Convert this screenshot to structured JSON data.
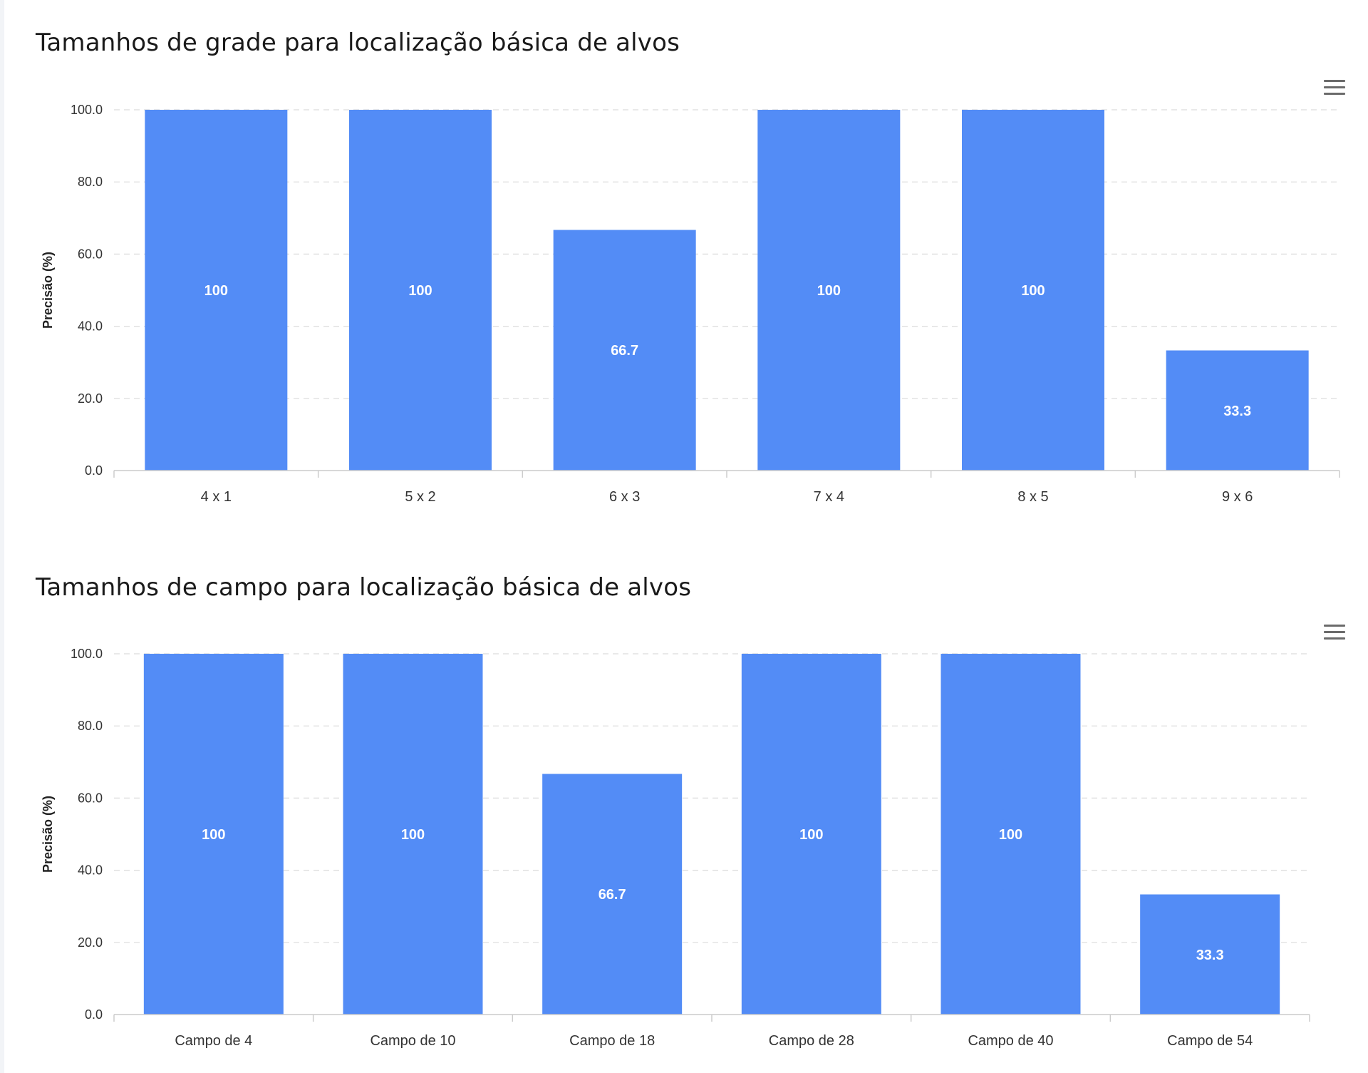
{
  "colors": {
    "bar": "#538cf6",
    "grid": "#dcdcdc",
    "axis": "#cccccc"
  },
  "chart_data": [
    {
      "type": "bar",
      "title": "Tamanhos de grade para localização básica de alvos",
      "xlabel": "",
      "ylabel": "Precisão (%)",
      "ylim": [
        0,
        100
      ],
      "yticks": [
        "0.0",
        "20.0",
        "40.0",
        "60.0",
        "80.0",
        "100.0"
      ],
      "categories": [
        "4 x 1",
        "5 x 2",
        "6 x 3",
        "7 x 4",
        "8 x 5",
        "9 x 6"
      ],
      "values": [
        100,
        100,
        66.7,
        100,
        100,
        33.3
      ],
      "value_labels": [
        "100",
        "100",
        "66.7",
        "100",
        "100",
        "33.3"
      ],
      "grid": true,
      "menu_icon": "hamburger-menu-icon"
    },
    {
      "type": "bar",
      "title": "Tamanhos de campo para localização básica de alvos",
      "xlabel": "",
      "ylabel": "Precisão (%)",
      "ylim": [
        0,
        100
      ],
      "yticks": [
        "0.0",
        "20.0",
        "40.0",
        "60.0",
        "80.0",
        "100.0"
      ],
      "categories": [
        "Campo de 4",
        "Campo de 10",
        "Campo de 18",
        "Campo de 28",
        "Campo de 40",
        "Campo de 54"
      ],
      "values": [
        100,
        100,
        66.7,
        100,
        100,
        33.3
      ],
      "value_labels": [
        "100",
        "100",
        "66.7",
        "100",
        "100",
        "33.3"
      ],
      "grid": true,
      "menu_icon": "hamburger-menu-icon"
    }
  ]
}
